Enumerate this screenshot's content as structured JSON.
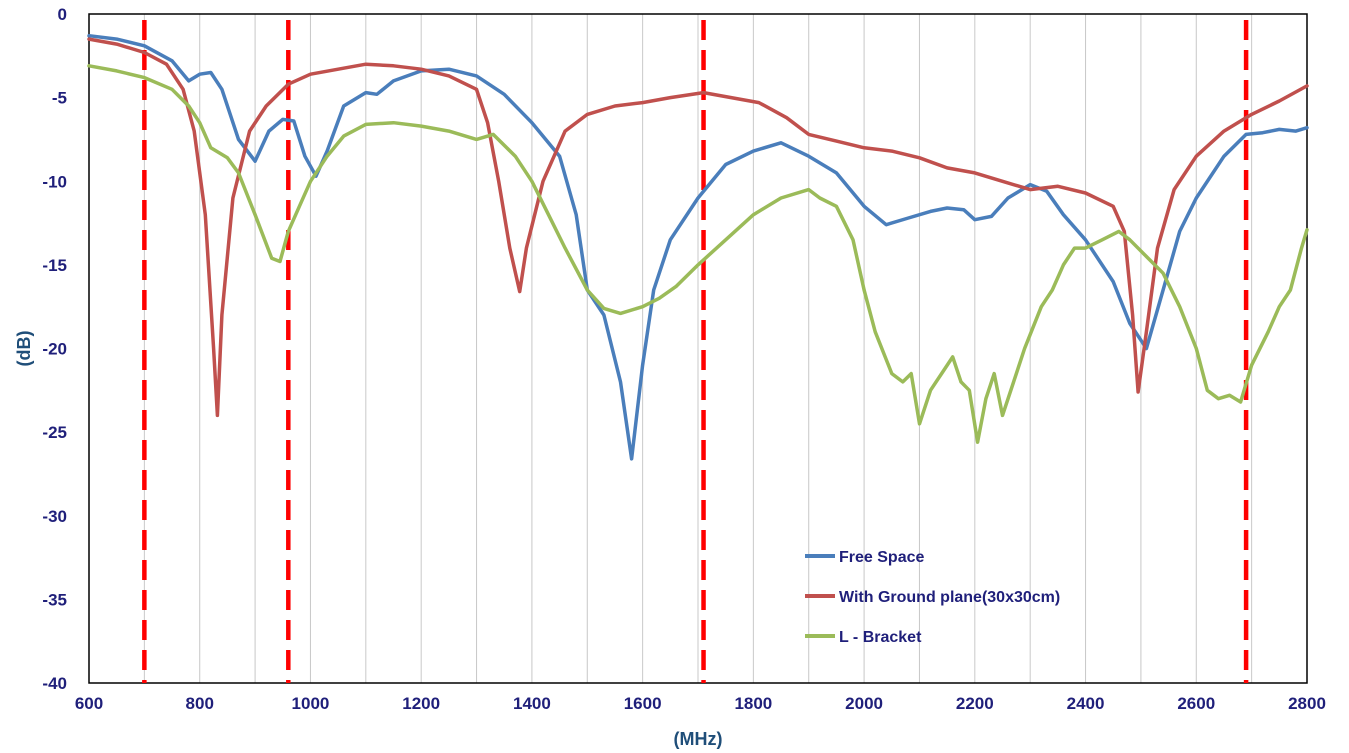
{
  "chart_data": {
    "type": "line",
    "xlabel": "(MHz)",
    "ylabel": "(dB)",
    "xlim": [
      600,
      2800
    ],
    "ylim": [
      -40,
      0
    ],
    "x_ticks": [
      "600",
      "800",
      "1000",
      "1200",
      "1400",
      "1600",
      "1800",
      "2000",
      "2200",
      "2400",
      "2600",
      "2800"
    ],
    "y_ticks": [
      "0",
      "-5",
      "-10",
      "-15",
      "-20",
      "-25",
      "-30",
      "-35",
      "-40"
    ],
    "grid": "vertical lines every 100 MHz",
    "legend_position": "bottom-center",
    "markers": [
      700,
      960,
      1710,
      2690
    ],
    "marker_color": "#ff0000",
    "series": [
      {
        "name": "Free Space",
        "color": "#4a7ebb",
        "points": [
          [
            600,
            -1.3
          ],
          [
            650,
            -1.5
          ],
          [
            700,
            -1.9
          ],
          [
            750,
            -2.8
          ],
          [
            780,
            -4.0
          ],
          [
            800,
            -3.6
          ],
          [
            820,
            -3.5
          ],
          [
            840,
            -4.5
          ],
          [
            870,
            -7.5
          ],
          [
            900,
            -8.8
          ],
          [
            925,
            -7.0
          ],
          [
            950,
            -6.3
          ],
          [
            970,
            -6.4
          ],
          [
            990,
            -8.5
          ],
          [
            1010,
            -9.7
          ],
          [
            1030,
            -8.2
          ],
          [
            1060,
            -5.5
          ],
          [
            1100,
            -4.7
          ],
          [
            1120,
            -4.8
          ],
          [
            1150,
            -4.0
          ],
          [
            1200,
            -3.4
          ],
          [
            1250,
            -3.3
          ],
          [
            1300,
            -3.7
          ],
          [
            1350,
            -4.8
          ],
          [
            1400,
            -6.5
          ],
          [
            1450,
            -8.5
          ],
          [
            1480,
            -12.0
          ],
          [
            1500,
            -16.5
          ],
          [
            1530,
            -18.0
          ],
          [
            1560,
            -22.0
          ],
          [
            1580,
            -26.6
          ],
          [
            1600,
            -21.0
          ],
          [
            1620,
            -16.5
          ],
          [
            1650,
            -13.5
          ],
          [
            1700,
            -11.0
          ],
          [
            1750,
            -9.0
          ],
          [
            1800,
            -8.2
          ],
          [
            1850,
            -7.7
          ],
          [
            1900,
            -8.5
          ],
          [
            1950,
            -9.5
          ],
          [
            2000,
            -11.5
          ],
          [
            2040,
            -12.6
          ],
          [
            2080,
            -12.2
          ],
          [
            2120,
            -11.8
          ],
          [
            2150,
            -11.6
          ],
          [
            2180,
            -11.7
          ],
          [
            2200,
            -12.3
          ],
          [
            2230,
            -12.1
          ],
          [
            2260,
            -11.0
          ],
          [
            2300,
            -10.2
          ],
          [
            2330,
            -10.6
          ],
          [
            2360,
            -12.0
          ],
          [
            2400,
            -13.5
          ],
          [
            2450,
            -16.0
          ],
          [
            2480,
            -18.5
          ],
          [
            2510,
            -20.0
          ],
          [
            2540,
            -16.5
          ],
          [
            2570,
            -13.0
          ],
          [
            2600,
            -11.0
          ],
          [
            2650,
            -8.5
          ],
          [
            2690,
            -7.2
          ],
          [
            2720,
            -7.1
          ],
          [
            2750,
            -6.9
          ],
          [
            2780,
            -7.0
          ],
          [
            2800,
            -6.8
          ]
        ]
      },
      {
        "name": "With Ground plane(30x30cm)",
        "color": "#c0504d",
        "points": [
          [
            600,
            -1.5
          ],
          [
            650,
            -1.8
          ],
          [
            700,
            -2.3
          ],
          [
            740,
            -3.0
          ],
          [
            770,
            -4.5
          ],
          [
            790,
            -7.0
          ],
          [
            810,
            -12.0
          ],
          [
            825,
            -20.0
          ],
          [
            832,
            -24.0
          ],
          [
            840,
            -18.0
          ],
          [
            860,
            -11.0
          ],
          [
            890,
            -7.0
          ],
          [
            920,
            -5.5
          ],
          [
            960,
            -4.2
          ],
          [
            1000,
            -3.6
          ],
          [
            1050,
            -3.3
          ],
          [
            1100,
            -3.0
          ],
          [
            1150,
            -3.1
          ],
          [
            1200,
            -3.3
          ],
          [
            1250,
            -3.7
          ],
          [
            1300,
            -4.5
          ],
          [
            1320,
            -6.5
          ],
          [
            1340,
            -10.0
          ],
          [
            1360,
            -14.0
          ],
          [
            1378,
            -16.6
          ],
          [
            1390,
            -14.0
          ],
          [
            1420,
            -10.0
          ],
          [
            1460,
            -7.0
          ],
          [
            1500,
            -6.0
          ],
          [
            1550,
            -5.5
          ],
          [
            1600,
            -5.3
          ],
          [
            1650,
            -5.0
          ],
          [
            1710,
            -4.7
          ],
          [
            1760,
            -5.0
          ],
          [
            1810,
            -5.3
          ],
          [
            1860,
            -6.2
          ],
          [
            1900,
            -7.2
          ],
          [
            1950,
            -7.6
          ],
          [
            2000,
            -8.0
          ],
          [
            2050,
            -8.2
          ],
          [
            2100,
            -8.6
          ],
          [
            2150,
            -9.2
          ],
          [
            2200,
            -9.5
          ],
          [
            2250,
            -10.0
          ],
          [
            2300,
            -10.5
          ],
          [
            2350,
            -10.3
          ],
          [
            2400,
            -10.7
          ],
          [
            2450,
            -11.5
          ],
          [
            2470,
            -13.0
          ],
          [
            2485,
            -18.0
          ],
          [
            2495,
            -22.6
          ],
          [
            2510,
            -19.0
          ],
          [
            2530,
            -14.0
          ],
          [
            2560,
            -10.5
          ],
          [
            2600,
            -8.5
          ],
          [
            2650,
            -7.0
          ],
          [
            2700,
            -6.0
          ],
          [
            2750,
            -5.2
          ],
          [
            2800,
            -4.3
          ]
        ]
      },
      {
        "name": "L - Bracket",
        "color": "#9bbb59",
        "points": [
          [
            600,
            -3.1
          ],
          [
            650,
            -3.4
          ],
          [
            700,
            -3.8
          ],
          [
            750,
            -4.5
          ],
          [
            780,
            -5.5
          ],
          [
            800,
            -6.5
          ],
          [
            820,
            -8.0
          ],
          [
            850,
            -8.6
          ],
          [
            870,
            -9.5
          ],
          [
            900,
            -12.0
          ],
          [
            930,
            -14.6
          ],
          [
            945,
            -14.8
          ],
          [
            960,
            -13.0
          ],
          [
            980,
            -11.5
          ],
          [
            1000,
            -10.0
          ],
          [
            1030,
            -8.5
          ],
          [
            1060,
            -7.3
          ],
          [
            1100,
            -6.6
          ],
          [
            1150,
            -6.5
          ],
          [
            1200,
            -6.7
          ],
          [
            1250,
            -7.0
          ],
          [
            1300,
            -7.5
          ],
          [
            1330,
            -7.2
          ],
          [
            1370,
            -8.5
          ],
          [
            1400,
            -10.0
          ],
          [
            1430,
            -12.0
          ],
          [
            1460,
            -14.0
          ],
          [
            1500,
            -16.5
          ],
          [
            1530,
            -17.6
          ],
          [
            1560,
            -17.9
          ],
          [
            1600,
            -17.5
          ],
          [
            1630,
            -17.0
          ],
          [
            1660,
            -16.3
          ],
          [
            1700,
            -15.0
          ],
          [
            1750,
            -13.5
          ],
          [
            1800,
            -12.0
          ],
          [
            1850,
            -11.0
          ],
          [
            1900,
            -10.5
          ],
          [
            1920,
            -11.0
          ],
          [
            1950,
            -11.5
          ],
          [
            1980,
            -13.5
          ],
          [
            2000,
            -16.5
          ],
          [
            2020,
            -19.0
          ],
          [
            2050,
            -21.5
          ],
          [
            2070,
            -22.0
          ],
          [
            2085,
            -21.5
          ],
          [
            2100,
            -24.5
          ],
          [
            2120,
            -22.5
          ],
          [
            2140,
            -21.5
          ],
          [
            2160,
            -20.5
          ],
          [
            2175,
            -22.0
          ],
          [
            2190,
            -22.5
          ],
          [
            2205,
            -25.6
          ],
          [
            2220,
            -23.0
          ],
          [
            2235,
            -21.5
          ],
          [
            2250,
            -24.0
          ],
          [
            2270,
            -22.0
          ],
          [
            2290,
            -20.0
          ],
          [
            2320,
            -17.5
          ],
          [
            2340,
            -16.5
          ],
          [
            2360,
            -15.0
          ],
          [
            2380,
            -14.0
          ],
          [
            2400,
            -14.0
          ],
          [
            2430,
            -13.5
          ],
          [
            2460,
            -13.0
          ],
          [
            2480,
            -13.5
          ],
          [
            2510,
            -14.5
          ],
          [
            2540,
            -15.5
          ],
          [
            2570,
            -17.5
          ],
          [
            2600,
            -20.0
          ],
          [
            2620,
            -22.5
          ],
          [
            2640,
            -23.0
          ],
          [
            2660,
            -22.8
          ],
          [
            2680,
            -23.2
          ],
          [
            2700,
            -21.0
          ],
          [
            2730,
            -19.0
          ],
          [
            2750,
            -17.5
          ],
          [
            2770,
            -16.5
          ],
          [
            2790,
            -14.0
          ],
          [
            2800,
            -12.9
          ]
        ]
      }
    ]
  }
}
